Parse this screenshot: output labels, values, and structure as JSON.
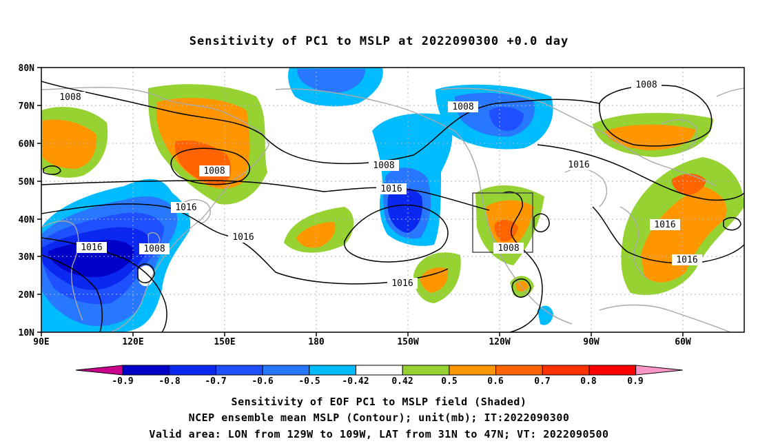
{
  "title": "Sensitivity of PC1 to MSLP at 2022090300 +0.0 day",
  "lat_labels": [
    "80N",
    "70N",
    "60N",
    "50N",
    "40N",
    "30N",
    "20N",
    "10N"
  ],
  "lon_labels": [
    "90E",
    "120E",
    "150E",
    "180",
    "150W",
    "120W",
    "90W",
    "60W"
  ],
  "colorbar": {
    "labels": [
      "-0.9",
      "-0.8",
      "-0.7",
      "-0.6",
      "-0.5",
      "-0.42",
      "0.42",
      "0.5",
      "0.6",
      "0.7",
      "0.8",
      "0.9"
    ],
    "colors": [
      "#c8008c",
      "#0000c8",
      "#0a28f0",
      "#1e50ff",
      "#2878ff",
      "#00bcff",
      "#ffffff",
      "#96d232",
      "#ff9600",
      "#ff6400",
      "#ff3200",
      "#ff0000",
      "#ff96c8"
    ]
  },
  "contour_labels": [
    {
      "text": "1008"
    },
    {
      "text": "1008"
    },
    {
      "text": "1008"
    },
    {
      "text": "1008"
    },
    {
      "text": "1008"
    },
    {
      "text": "1008"
    },
    {
      "text": "1008"
    },
    {
      "text": "1016"
    },
    {
      "text": "1016"
    },
    {
      "text": "1016"
    },
    {
      "text": "1016"
    },
    {
      "text": "1016"
    },
    {
      "text": "1016"
    },
    {
      "text": "1016"
    },
    {
      "text": "1016"
    }
  ],
  "valid_box": {
    "lon_from": "129W",
    "lon_to": "109W",
    "lat_from": "31N",
    "lat_to": "47N"
  },
  "captions": [
    "Sensitivity of EOF PC1 to MSLP field (Shaded)",
    "NCEP ensemble mean MSLP (Contour); unit(mb); IT:2022090300",
    "Valid area: LON from 129W to 109W, LAT from 31N to 47N; VT: 2022090500"
  ]
}
